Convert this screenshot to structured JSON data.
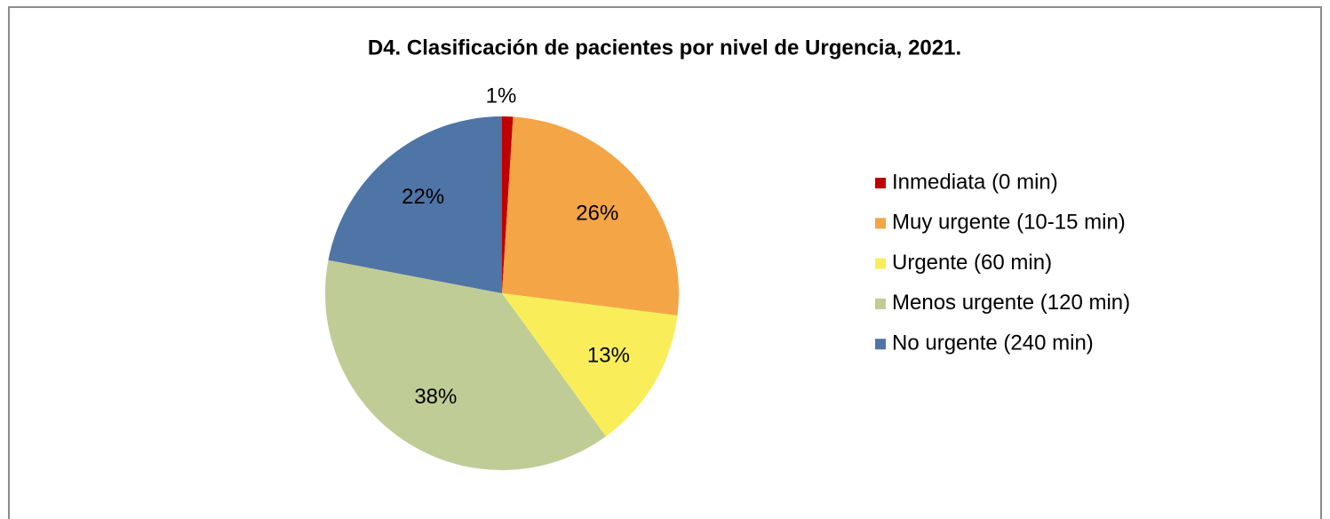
{
  "chart_data": {
    "type": "pie",
    "title": "D4. Clasificación de pacientes por nivel de Urgencia, 2021.",
    "categories": [
      "Inmediata (0 min)",
      "Muy urgente (10-15 min)",
      "Urgente (60 min)",
      "Menos urgente (120 min)",
      "No urgente (240 min)"
    ],
    "values": [
      1,
      26,
      13,
      38,
      22
    ],
    "value_labels": [
      "1%",
      "26%",
      "13%",
      "38%",
      "22%"
    ],
    "colors": [
      "#c00000",
      "#f4a546",
      "#f9ee5a",
      "#c0cc96",
      "#4f74a6"
    ],
    "legend": "right"
  }
}
